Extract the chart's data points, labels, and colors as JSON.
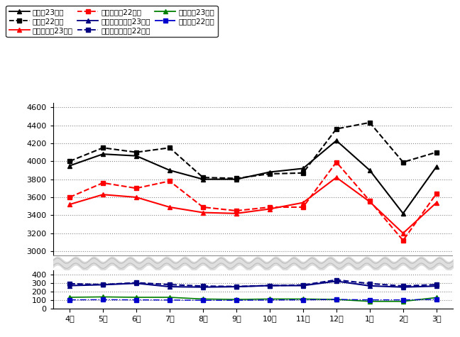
{
  "months": [
    "4月",
    "5月",
    "6月",
    "7月",
    "8月",
    "9月",
    "10月",
    "11月",
    "12月",
    "1月",
    "2月",
    "3月"
  ],
  "gokei_23": [
    3950,
    4080,
    4060,
    3900,
    3800,
    3800,
    3880,
    3920,
    4230,
    3900,
    3420,
    3940
  ],
  "gokei_22": [
    4000,
    4150,
    4100,
    4150,
    3820,
    3810,
    3860,
    3870,
    4360,
    4430,
    3990,
    4100
  ],
  "moeru_23": [
    3520,
    3630,
    3600,
    3490,
    3430,
    3420,
    3470,
    3540,
    3820,
    3550,
    3200,
    3540
  ],
  "moeru_22": [
    3600,
    3760,
    3700,
    3780,
    3490,
    3450,
    3490,
    3490,
    3990,
    3560,
    3120,
    3640
  ],
  "moenai_23": [
    268,
    278,
    295,
    255,
    250,
    255,
    268,
    268,
    320,
    265,
    250,
    262
  ],
  "moenai_22": [
    290,
    280,
    302,
    280,
    262,
    258,
    268,
    275,
    335,
    292,
    263,
    280
  ],
  "sodai_23": [
    130,
    135,
    130,
    130,
    110,
    105,
    110,
    110,
    105,
    82,
    82,
    127
  ],
  "sodai_22": [
    100,
    102,
    100,
    98,
    95,
    95,
    98,
    100,
    105,
    100,
    100,
    105
  ],
  "upper_ylim": [
    2950,
    4650
  ],
  "lower_ylim": [
    0,
    450
  ],
  "yticks_upper": [
    3000,
    3200,
    3400,
    3600,
    3800,
    4000,
    4200,
    4400,
    4600
  ],
  "yticks_lower": [
    0,
    100,
    200,
    300,
    400
  ],
  "bg_color": "#ffffff",
  "grid_color": "#888888",
  "wavy_color": "#c0c0c0",
  "wavy_fill": "#d8d8d8",
  "black": "#000000",
  "red": "#ff0000",
  "darkblue": "#000080",
  "green": "#008000",
  "blue": "#0000cd",
  "legend_entries": [
    {
      "label": "合計量23年度",
      "color": "#000000",
      "ls": "-",
      "marker": "^",
      "ms": 5
    },
    {
      "label": "合計量22年度",
      "color": "#000000",
      "ls": "--",
      "marker": "s",
      "ms": 5
    },
    {
      "label": "燃やすごみ23年度",
      "color": "#ff0000",
      "ls": "-",
      "marker": "^",
      "ms": 5
    },
    {
      "label": "燃やすごみ22年度",
      "color": "#ff0000",
      "ls": "--",
      "marker": "s",
      "ms": 5
    },
    {
      "label": "燃やさないごみ23年度",
      "color": "#000080",
      "ls": "-",
      "marker": "^",
      "ms": 5
    },
    {
      "label": "燃やさないごみ22年度",
      "color": "#000080",
      "ls": "--",
      "marker": "s",
      "ms": 5
    },
    {
      "label": "粗大ごみ23年度",
      "color": "#008000",
      "ls": "-",
      "marker": "^",
      "ms": 5
    },
    {
      "label": "粗大ごみ22年度",
      "color": "#0000cd",
      "ls": "-.",
      "marker": "s",
      "ms": 4
    }
  ]
}
